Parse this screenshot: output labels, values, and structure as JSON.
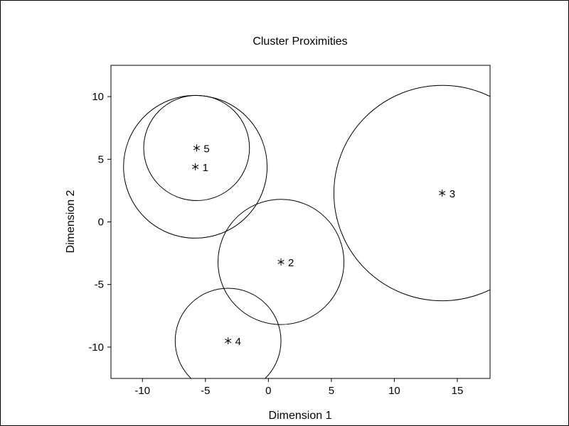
{
  "chart_data": {
    "type": "scatter",
    "title": "Cluster Proximities",
    "xlabel": "Dimension 1",
    "ylabel": "Dimension 2",
    "xlim": [
      -12.5,
      17.6
    ],
    "ylim": [
      -12.5,
      12.5
    ],
    "xticks": [
      -10,
      -5,
      0,
      5,
      10,
      15
    ],
    "yticks": [
      -10,
      -5,
      0,
      5,
      10
    ],
    "xtick_labels": [
      "-10",
      "-5",
      "0",
      "5",
      "10",
      "15"
    ],
    "ytick_labels": [
      "-10",
      "-5",
      "0",
      "5",
      "10"
    ],
    "marker": "*",
    "grid": false,
    "clusters": [
      {
        "label": "1",
        "x": -5.8,
        "y": 4.4,
        "radius": 5.7
      },
      {
        "label": "2",
        "x": 1.0,
        "y": -3.2,
        "radius": 5.0
      },
      {
        "label": "3",
        "x": 13.8,
        "y": 2.3,
        "radius": 8.6
      },
      {
        "label": "4",
        "x": -3.2,
        "y": -9.5,
        "radius": 4.2
      },
      {
        "label": "5",
        "x": -5.7,
        "y": 5.9,
        "radius": 4.2
      }
    ]
  }
}
